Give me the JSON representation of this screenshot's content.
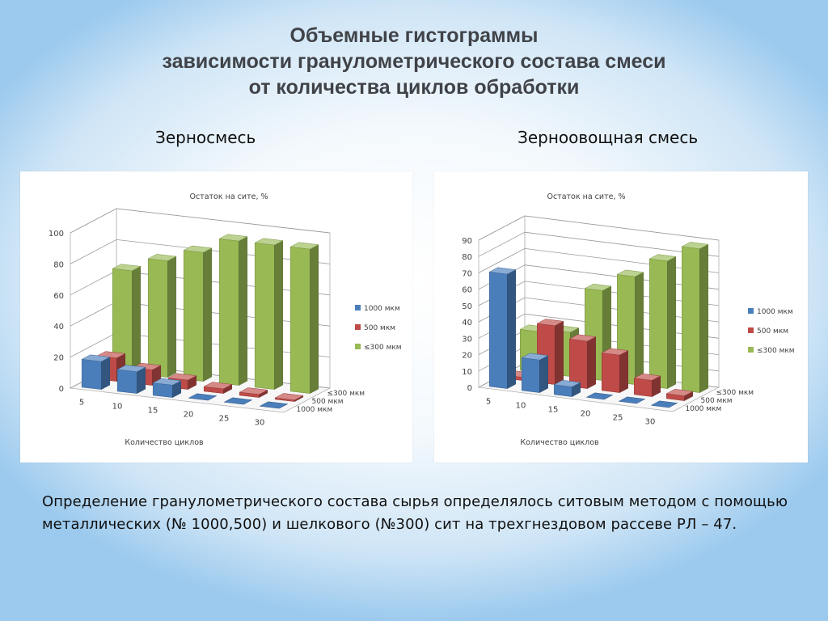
{
  "header": {
    "title_lines": [
      "Объемные гистограммы",
      "зависимости гранулометрического состава смеси",
      "от количества циклов обработки"
    ]
  },
  "description": "Определение гранулометрического состава сырья  определялось  ситовым методом с помощью металлических (№ 1000,500) и шелкового (№300) сит на трехгнездовом рассеве РЛ – 47.",
  "colors": {
    "s1000": "#4a7ebb",
    "s500": "#be4b48",
    "s300": "#98b954"
  },
  "chart_data": [
    {
      "type": "bar",
      "subtitle": "Зерносмесь",
      "title": "Остаток на сите, %",
      "xlabel": "Количество циклов",
      "categories": [
        "5",
        "10",
        "15",
        "20",
        "25",
        "30"
      ],
      "depth_labels": [
        "≤300 мкм",
        "500 мкм",
        "1000 мкм"
      ],
      "ylim": [
        0,
        100
      ],
      "yticks": [
        "0",
        "20",
        "40",
        "60",
        "80",
        "100"
      ],
      "legend_position": "right",
      "grid": true,
      "series": [
        {
          "name": "1000 мкм",
          "values": [
            18,
            14,
            8,
            0,
            0,
            0
          ]
        },
        {
          "name": "500 мкм",
          "values": [
            15,
            10,
            6,
            3,
            2,
            1
          ]
        },
        {
          "name": "≤300 мкм",
          "values": [
            66,
            75,
            83,
            93,
            93,
            93
          ]
        }
      ]
    },
    {
      "type": "bar",
      "subtitle": "Зерноовощная смесь",
      "title": "Остаток на сите, %",
      "xlabel": "Количество циклов",
      "categories": [
        "5",
        "10",
        "15",
        "20",
        "25",
        "30"
      ],
      "depth_labels": [
        "≤300 мкм",
        "500 мкм",
        "1000 мкм"
      ],
      "ylim": [
        0,
        90
      ],
      "yticks": [
        "0",
        "10",
        "20",
        "30",
        "40",
        "50",
        "60",
        "70",
        "80",
        "90"
      ],
      "legend_position": "right",
      "grid": true,
      "series": [
        {
          "name": "1000 мкм",
          "values": [
            70,
            20,
            6,
            0,
            0,
            0
          ]
        },
        {
          "name": "500 мкм",
          "values": [
            2,
            36,
            29,
            23,
            10,
            3
          ]
        },
        {
          "name": "≤300 мкм",
          "values": [
            25,
            27,
            55,
            66,
            78,
            88
          ]
        }
      ]
    }
  ]
}
